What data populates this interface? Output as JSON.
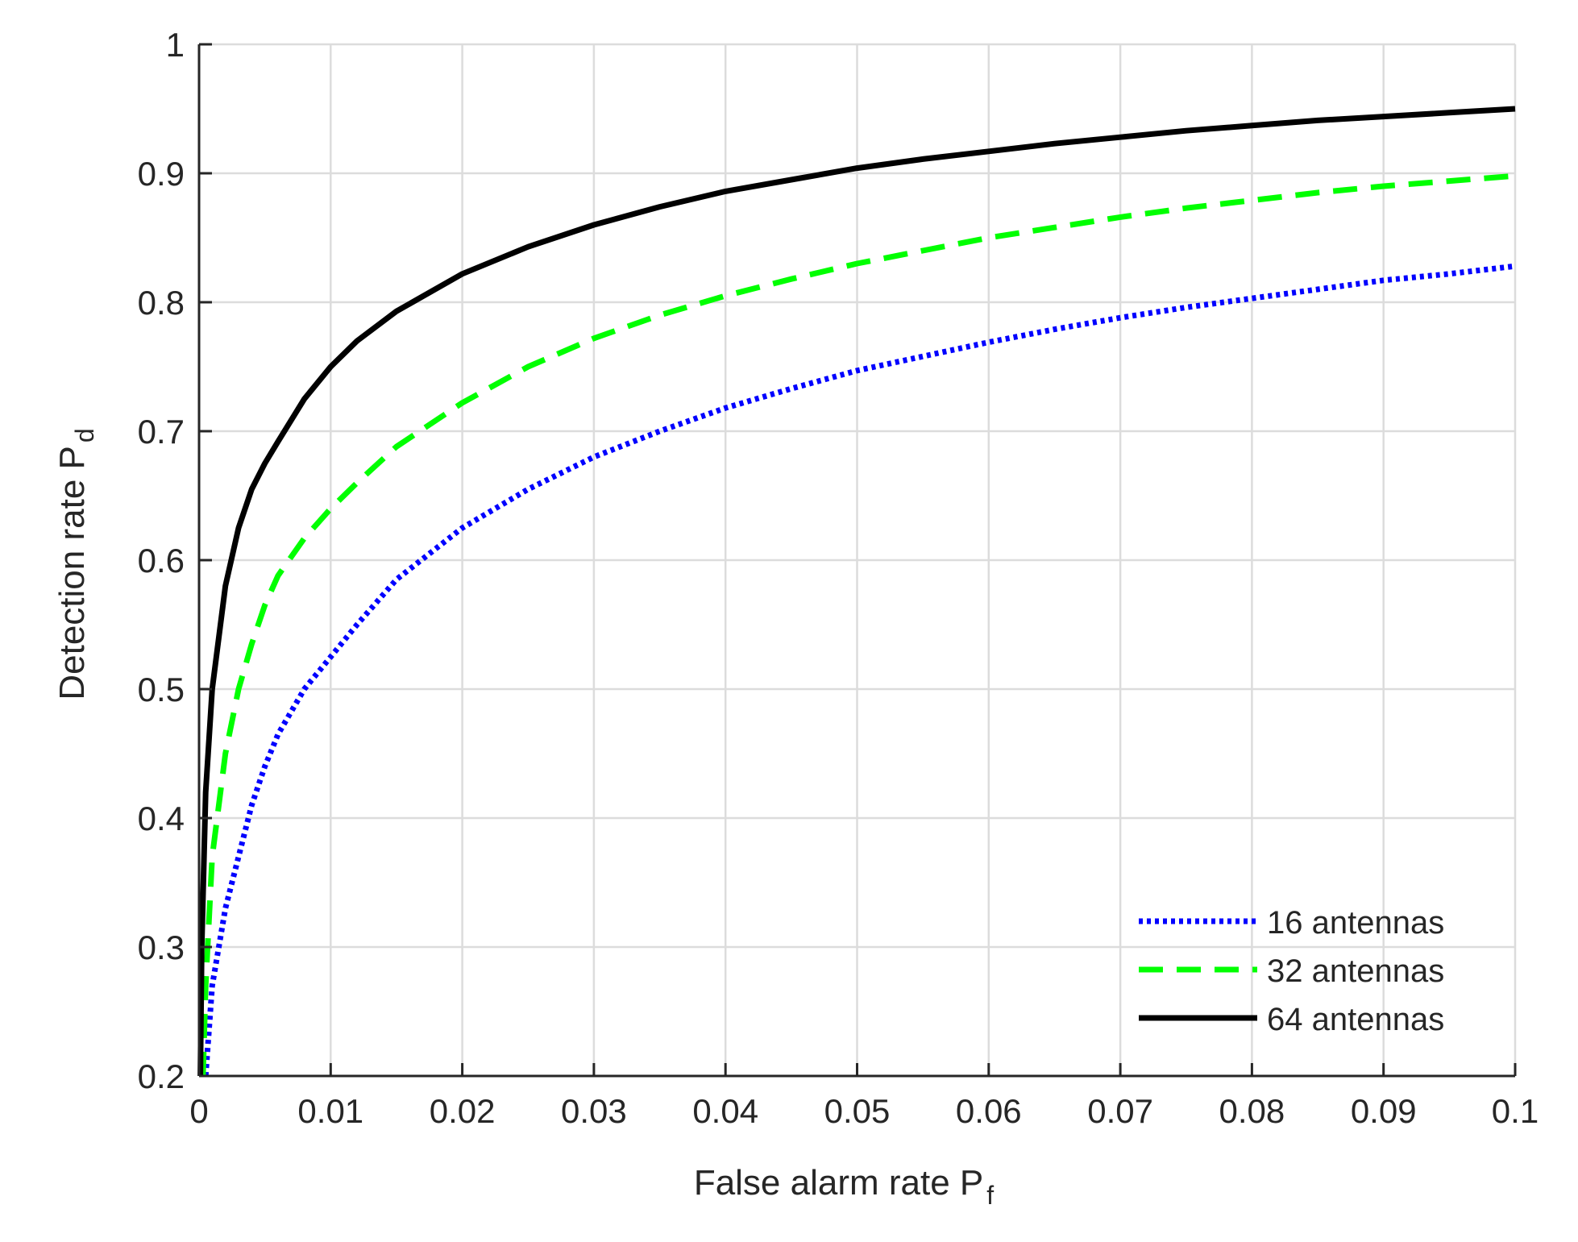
{
  "chart_data": {
    "type": "line",
    "xlabel": {
      "main": "False alarm rate P",
      "sub": "f"
    },
    "ylabel": {
      "main": "Detection rate P",
      "sub": "d"
    },
    "xlim": [
      0,
      0.1
    ],
    "ylim": [
      0.2,
      1
    ],
    "x_ticks": [
      0,
      0.01,
      0.02,
      0.03,
      0.04,
      0.05,
      0.06,
      0.07,
      0.08,
      0.09,
      0.1
    ],
    "x_tick_labels": [
      "0",
      "0.01",
      "0.02",
      "0.03",
      "0.04",
      "0.05",
      "0.06",
      "0.07",
      "0.08",
      "0.09",
      "0.1"
    ],
    "y_ticks": [
      0.2,
      0.3,
      0.4,
      0.5,
      0.6,
      0.7,
      0.8,
      0.9,
      1
    ],
    "y_tick_labels": [
      "0.2",
      "0.3",
      "0.4",
      "0.5",
      "0.6",
      "0.7",
      "0.8",
      "0.9",
      "1"
    ],
    "grid": true,
    "legend_position": "bottom-right",
    "series": [
      {
        "name": "16 antennas",
        "color": "#0000ff",
        "style": "dotted",
        "points": [
          [
            0.0005,
            0.2
          ],
          [
            0.001,
            0.27
          ],
          [
            0.002,
            0.33
          ],
          [
            0.003,
            0.37
          ],
          [
            0.004,
            0.41
          ],
          [
            0.005,
            0.44
          ],
          [
            0.006,
            0.465
          ],
          [
            0.008,
            0.5
          ],
          [
            0.01,
            0.525
          ],
          [
            0.012,
            0.55
          ],
          [
            0.015,
            0.585
          ],
          [
            0.02,
            0.625
          ],
          [
            0.025,
            0.655
          ],
          [
            0.03,
            0.68
          ],
          [
            0.035,
            0.7
          ],
          [
            0.04,
            0.718
          ],
          [
            0.045,
            0.733
          ],
          [
            0.05,
            0.747
          ],
          [
            0.055,
            0.758
          ],
          [
            0.06,
            0.769
          ],
          [
            0.065,
            0.779
          ],
          [
            0.07,
            0.788
          ],
          [
            0.075,
            0.796
          ],
          [
            0.08,
            0.803
          ],
          [
            0.085,
            0.81
          ],
          [
            0.09,
            0.817
          ],
          [
            0.095,
            0.822
          ],
          [
            0.1,
            0.828
          ]
        ]
      },
      {
        "name": "32 antennas",
        "color": "#00ff00",
        "style": "dashed",
        "points": [
          [
            0.0003,
            0.2
          ],
          [
            0.0005,
            0.27
          ],
          [
            0.001,
            0.37
          ],
          [
            0.002,
            0.45
          ],
          [
            0.003,
            0.5
          ],
          [
            0.004,
            0.535
          ],
          [
            0.005,
            0.565
          ],
          [
            0.006,
            0.588
          ],
          [
            0.008,
            0.617
          ],
          [
            0.01,
            0.64
          ],
          [
            0.012,
            0.66
          ],
          [
            0.015,
            0.688
          ],
          [
            0.02,
            0.722
          ],
          [
            0.025,
            0.75
          ],
          [
            0.03,
            0.772
          ],
          [
            0.035,
            0.79
          ],
          [
            0.04,
            0.805
          ],
          [
            0.045,
            0.818
          ],
          [
            0.05,
            0.83
          ],
          [
            0.055,
            0.84
          ],
          [
            0.06,
            0.85
          ],
          [
            0.065,
            0.858
          ],
          [
            0.07,
            0.866
          ],
          [
            0.075,
            0.873
          ],
          [
            0.08,
            0.879
          ],
          [
            0.085,
            0.885
          ],
          [
            0.09,
            0.89
          ],
          [
            0.095,
            0.894
          ],
          [
            0.1,
            0.898
          ]
        ]
      },
      {
        "name": "64 antennas",
        "color": "#000000",
        "style": "solid",
        "points": [
          [
            0.0001,
            0.2
          ],
          [
            0.0002,
            0.3
          ],
          [
            0.0005,
            0.42
          ],
          [
            0.001,
            0.5
          ],
          [
            0.002,
            0.58
          ],
          [
            0.003,
            0.625
          ],
          [
            0.004,
            0.655
          ],
          [
            0.005,
            0.675
          ],
          [
            0.006,
            0.692
          ],
          [
            0.008,
            0.725
          ],
          [
            0.01,
            0.75
          ],
          [
            0.012,
            0.77
          ],
          [
            0.015,
            0.793
          ],
          [
            0.02,
            0.822
          ],
          [
            0.025,
            0.843
          ],
          [
            0.03,
            0.86
          ],
          [
            0.035,
            0.874
          ],
          [
            0.04,
            0.886
          ],
          [
            0.045,
            0.895
          ],
          [
            0.05,
            0.904
          ],
          [
            0.055,
            0.911
          ],
          [
            0.06,
            0.917
          ],
          [
            0.065,
            0.923
          ],
          [
            0.07,
            0.928
          ],
          [
            0.075,
            0.933
          ],
          [
            0.08,
            0.937
          ],
          [
            0.085,
            0.941
          ],
          [
            0.09,
            0.944
          ],
          [
            0.095,
            0.947
          ],
          [
            0.1,
            0.95
          ]
        ]
      }
    ]
  }
}
